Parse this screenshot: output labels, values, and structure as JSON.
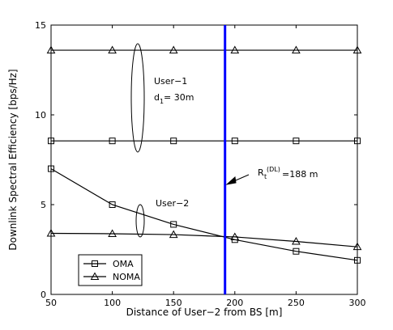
{
  "chart_data": {
    "type": "line",
    "xlabel": "Distance of User−2 from BS [m]",
    "ylabel": "Downlink Spectral Efficiency [bps/Hz]",
    "xlim": [
      50,
      300
    ],
    "ylim": [
      0,
      15
    ],
    "xticks": [
      50,
      100,
      150,
      200,
      250,
      300
    ],
    "yticks": [
      0,
      5,
      10,
      15
    ],
    "grid": false,
    "legend_position": "bottom-left",
    "x": [
      50,
      100,
      150,
      200,
      250,
      300
    ],
    "series": [
      {
        "name": "OMA",
        "group": "User-1",
        "marker": "square",
        "values": [
          8.55,
          8.55,
          8.55,
          8.55,
          8.55,
          8.55
        ]
      },
      {
        "name": "NOMA",
        "group": "User-1",
        "marker": "triangle",
        "values": [
          13.6,
          13.6,
          13.6,
          13.6,
          13.6,
          13.6
        ]
      },
      {
        "name": "OMA",
        "group": "User-2",
        "marker": "square",
        "values": [
          7.0,
          5.0,
          3.9,
          3.05,
          2.4,
          1.9
        ]
      },
      {
        "name": "NOMA",
        "group": "User-2",
        "marker": "triangle",
        "values": [
          3.4,
          3.38,
          3.33,
          3.2,
          2.95,
          2.65
        ]
      }
    ],
    "threshold": {
      "x": 192,
      "color": "#0000ff"
    },
    "annotations": {
      "user1_line1": "User−1",
      "user1_d": "d",
      "user1_dsub": "1",
      "user1_dval": " = 30m",
      "user2": "User−2",
      "r_base": "R",
      "r_sub": "t",
      "r_sup": "(DL)",
      "r_val": "=188 m"
    },
    "legend": [
      "OMA",
      "NOMA"
    ]
  }
}
